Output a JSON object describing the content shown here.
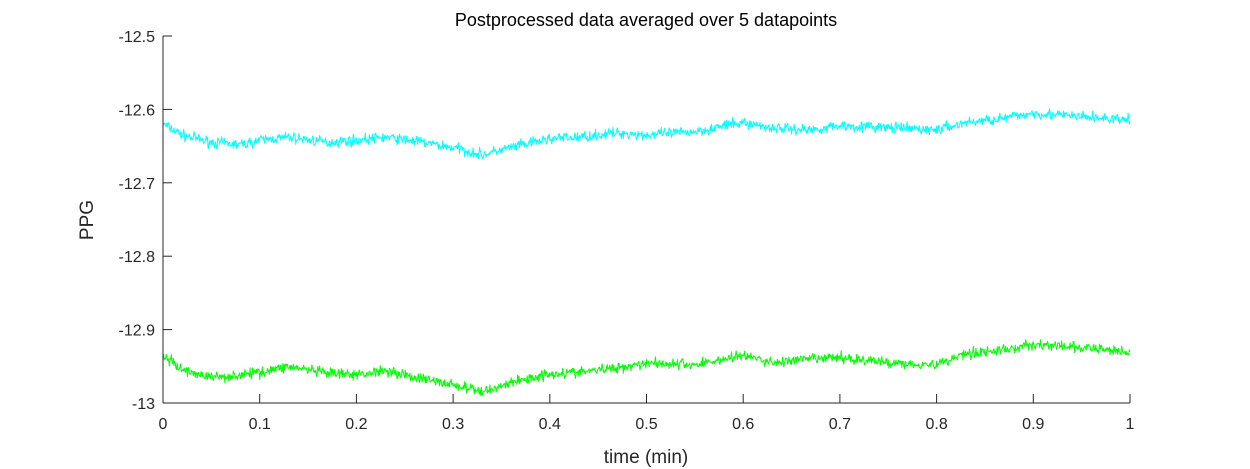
{
  "chart_data": {
    "type": "line",
    "title": "Postprocessed data averaged over 5 datapoints",
    "xlabel": "time (min)",
    "ylabel": "PPG",
    "xlim": [
      0,
      1
    ],
    "ylim": [
      -13,
      -12.5
    ],
    "x_ticks": [
      0,
      0.1,
      0.2,
      0.3,
      0.4,
      0.5,
      0.6,
      0.7,
      0.8,
      0.9,
      1
    ],
    "x_tick_labels": [
      "0",
      "0.1",
      "0.2",
      "0.3",
      "0.4",
      "0.5",
      "0.6",
      "0.7",
      "0.8",
      "0.9",
      "1"
    ],
    "y_ticks": [
      -12.5,
      -12.6,
      -12.7,
      -12.8,
      -12.9,
      -13
    ],
    "y_tick_labels": [
      "-12.5",
      "-12.6",
      "-12.7",
      "-12.8",
      "-12.9",
      "-13"
    ],
    "grid": false,
    "legend": "none",
    "noise_amplitude": 0.008,
    "series": [
      {
        "color": "#00ffff",
        "x": [
          0,
          0.02,
          0.05,
          0.08,
          0.1,
          0.13,
          0.17,
          0.2,
          0.23,
          0.26,
          0.3,
          0.33,
          0.36,
          0.4,
          0.43,
          0.47,
          0.5,
          0.55,
          0.6,
          0.63,
          0.67,
          0.7,
          0.75,
          0.8,
          0.83,
          0.87,
          0.9,
          0.95,
          1
        ],
        "y": [
          -12.62,
          -12.635,
          -12.645,
          -12.648,
          -12.642,
          -12.638,
          -12.645,
          -12.642,
          -12.638,
          -12.643,
          -12.652,
          -12.662,
          -12.652,
          -12.64,
          -12.638,
          -12.632,
          -12.635,
          -12.63,
          -12.618,
          -12.625,
          -12.628,
          -12.622,
          -12.625,
          -12.628,
          -12.618,
          -12.612,
          -12.605,
          -12.61,
          -12.615
        ]
      },
      {
        "color": "#00ff00",
        "x": [
          0,
          0.02,
          0.05,
          0.08,
          0.1,
          0.13,
          0.17,
          0.2,
          0.23,
          0.26,
          0.3,
          0.33,
          0.36,
          0.4,
          0.43,
          0.47,
          0.5,
          0.55,
          0.6,
          0.63,
          0.67,
          0.7,
          0.75,
          0.8,
          0.83,
          0.87,
          0.9,
          0.95,
          1
        ],
        "y": [
          -12.935,
          -12.955,
          -12.965,
          -12.962,
          -12.958,
          -12.95,
          -12.96,
          -12.962,
          -12.955,
          -12.965,
          -12.975,
          -12.985,
          -12.972,
          -12.96,
          -12.958,
          -12.952,
          -12.945,
          -12.948,
          -12.935,
          -12.945,
          -12.94,
          -12.938,
          -12.945,
          -12.948,
          -12.932,
          -12.928,
          -12.92,
          -12.925,
          -12.93
        ]
      }
    ]
  }
}
